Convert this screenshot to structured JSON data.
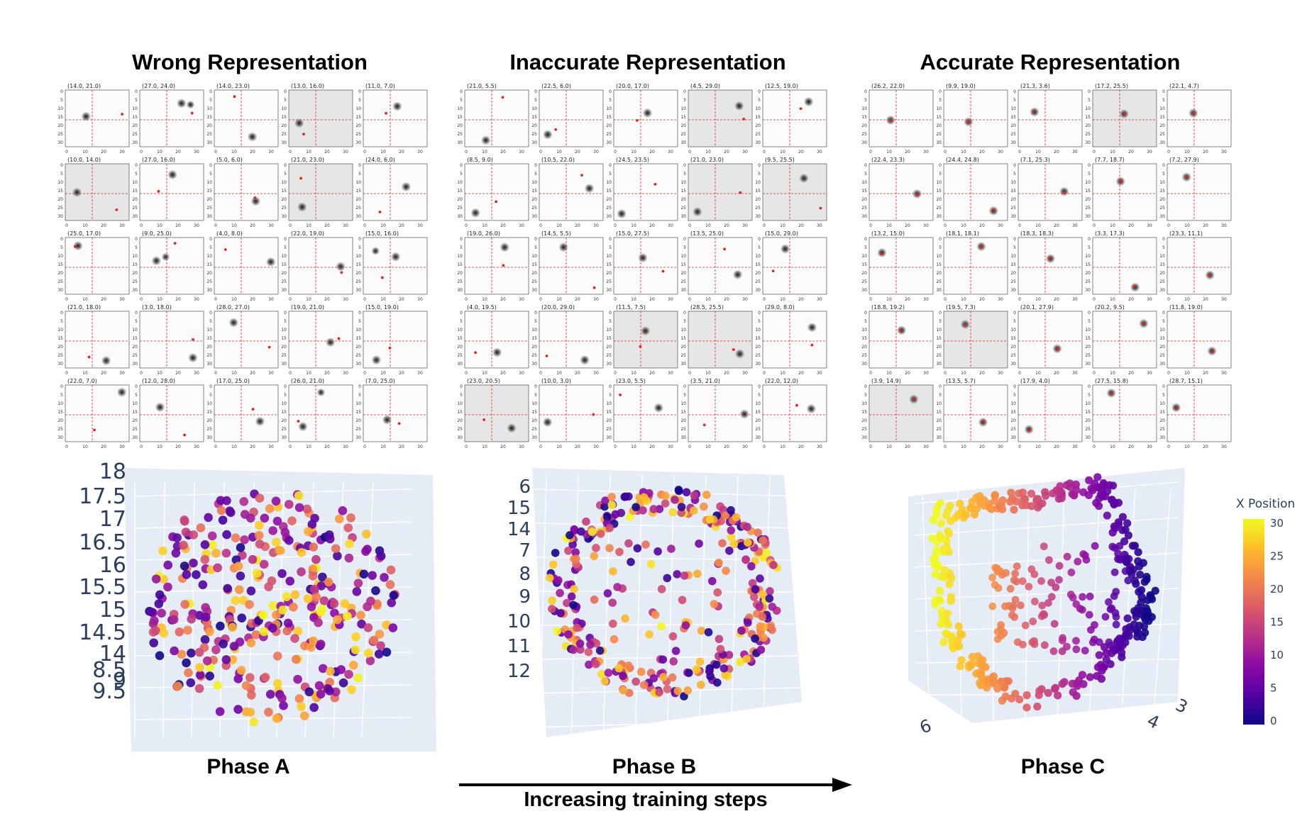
{
  "titles": [
    "Wrong Representation",
    "Inaccurate Representation",
    "Accurate Representation"
  ],
  "phases": [
    "Phase A",
    "Phase B",
    "Phase C"
  ],
  "arrow_label": "Increasing training steps",
  "axis_ticks": [
    "0",
    "10",
    "20",
    "30"
  ],
  "y_ticks": [
    "0",
    "5",
    "10",
    "15",
    "20",
    "25",
    "30"
  ],
  "grids": [
    {
      "name": "wrong",
      "cells": [
        "(14.0, 21.0)",
        "(27.0, 24.0)",
        "(14.0, 23.0)",
        "(13.0, 16.0)",
        "(11.0, 7.0)",
        "(10.0, 14.0)",
        "(27.0, 16.0)",
        "(5.0, 6.0)",
        "(21.0, 23.0)",
        "(24.0, 6.0)",
        "(25.0, 17.0)",
        "(9.0, 25.0)",
        "(4.0, 8.0)",
        "(22.0, 19.0)",
        "(15.0, 16.0)",
        "(21.0, 18.0)",
        "(3.0, 18.0)",
        "(28.0, 27.0)",
        "(19.0, 21.0)",
        "(15.0, 19.0)",
        "(22.0, 7.0)",
        "(12.0, 28.0)",
        "(17.0, 25.0)",
        "(26.0, 21.0)",
        "(7.0, 25.0)"
      ]
    },
    {
      "name": "inaccurate",
      "cells": [
        "(21.0, 5.5)",
        "(22.5, 6.0)",
        "(20.0, 17.0)",
        "(4.5, 29.0)",
        "(12.5, 19.0)",
        "(8.5, 9.0)",
        "(10.5, 22.0)",
        "(24.5, 23.5)",
        "(21.0, 23.0)",
        "(9.5, 25.5)",
        "(19.0, 26.0)",
        "(14.5, 5.5)",
        "(15.0, 27.5)",
        "(13.5, 25.0)",
        "(15.0, 29.0)",
        "(4.0, 19.5)",
        "(20.0, 29.0)",
        "(11.5, 7.5)",
        "(28.5, 25.5)",
        "(29.0, 8.0)",
        "(23.0, 20.5)",
        "(10.0, 3.0)",
        "(23.0, 5.5)",
        "(3.5, 21.0)",
        "(22.0, 12.0)"
      ]
    },
    {
      "name": "accurate",
      "cells": [
        "(26.2, 22.0)",
        "(9.9, 19.0)",
        "(21.3, 3.6)",
        "(17.2, 25.5)",
        "(22.1, 4.7)",
        "(22.4, 23.3)",
        "(24.4, 24.8)",
        "(7.1, 25.3)",
        "(7.7, 18.7)",
        "(7.2, 27.9)",
        "(13.2, 15.0)",
        "(18.1, 18.1)",
        "(18.3, 18.3)",
        "(3.3, 17.3)",
        "(23.3, 11.1)",
        "(18.8, 19.2)",
        "(19.5, 7.3)",
        "(20.1, 27.9)",
        "(20.2, 9.5)",
        "(11.8, 19.0)",
        "(3.9, 14.9)",
        "(13.5, 5.7)",
        "(17.9, 4.0)",
        "(27.5, 15.8)",
        "(28.7, 15.1)"
      ]
    }
  ],
  "phaseA_ticks": [
    "18",
    "17.5",
    "17",
    "16.5",
    "16",
    "15.5",
    "15",
    "14.5",
    "14",
    "8.5",
    "9",
    "9.5"
  ],
  "phaseB_ticks": [
    "6",
    "15",
    "14",
    "7",
    "8",
    "9",
    "10",
    "11",
    "12"
  ],
  "phaseC_ticks": [
    "6",
    "4",
    "3"
  ],
  "colorbar": {
    "title": "X Position",
    "ticks": [
      "30",
      "25",
      "20",
      "15",
      "10",
      "5",
      "0"
    ]
  },
  "colors": {
    "crosshair": "#e8231e",
    "marker": "#e8231e",
    "plot_bg": "#e5ecf6",
    "axis_text": "#2a3f5f"
  }
}
